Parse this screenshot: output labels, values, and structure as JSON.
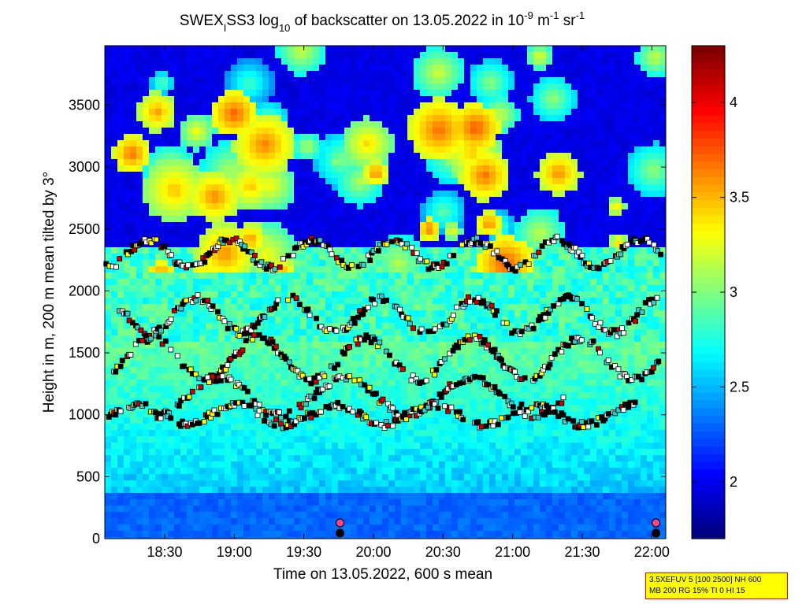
{
  "chart_data": {
    "type": "heatmap",
    "title": "SWEX_ISS3 log10 of backscatter on 13.05.2022 in 10^-9 m^-1 sr^-1",
    "title_parts": {
      "a": "SWEX",
      "a_sub": "I",
      "b": "SS3 log",
      "b_sub": "10",
      "c": " of backscatter on 13.05.2022 in 10",
      "c_sup": "-9",
      "d": " m",
      "d_sup": "-1",
      "e": " sr",
      "e_sup": "-1"
    },
    "xlabel": "Time on 13.05.2022, 600 s mean",
    "ylabel": "Height in m, 200 m mean tilted by 3°",
    "x_ticks": [
      "18:30",
      "19:00",
      "19:30",
      "20:00",
      "20:30",
      "21:00",
      "21:30",
      "22:00"
    ],
    "x_tick_hours": [
      18.5,
      19.0,
      19.5,
      20.0,
      20.5,
      21.0,
      21.5,
      22.0
    ],
    "xlim_hours": [
      18.07,
      22.1
    ],
    "y_ticks": [
      "0",
      "500",
      "1000",
      "1500",
      "2000",
      "2500",
      "3000",
      "3500"
    ],
    "y_tick_values": [
      0,
      500,
      1000,
      1500,
      2000,
      2500,
      3000,
      3500
    ],
    "ylim": [
      0,
      3980
    ],
    "colorbar": {
      "range": [
        1.7,
        4.3
      ],
      "ticks": [
        "2",
        "2.5",
        "3",
        "3.5",
        "4"
      ],
      "tick_values": [
        2,
        2.5,
        3,
        3.5,
        4
      ],
      "colormap": "jet"
    },
    "layers": [
      {
        "name": "cloud-top",
        "hour_start": 18.08,
        "hour_end": 22.08,
        "base": 2300,
        "amp": 110,
        "freq": 3.4
      },
      {
        "name": "upper-layer",
        "hour_start": 18.15,
        "hour_end": 22.05,
        "base": 1800,
        "amp": 140,
        "freq": 3.0
      },
      {
        "name": "middle-layer",
        "hour_start": 18.1,
        "hour_end": 22.05,
        "base": 1450,
        "amp": 170,
        "freq": 2.6
      },
      {
        "name": "lower-layer",
        "hour_start": 18.4,
        "hour_end": 21.4,
        "base": 1150,
        "amp": 150,
        "freq": 2.2
      },
      {
        "name": "bottom-layer",
        "hour_start": 18.1,
        "hour_end": 21.9,
        "base": 1000,
        "amp": 80,
        "freq": 2.8
      }
    ],
    "ground_markers_hours": [
      19.76,
      22.03
    ]
  },
  "info_box": {
    "line1": "3.5XEFUV 5 [100 2500] NH 600",
    "line2": "MB 200 RG 15% TI 0 HI 15"
  }
}
